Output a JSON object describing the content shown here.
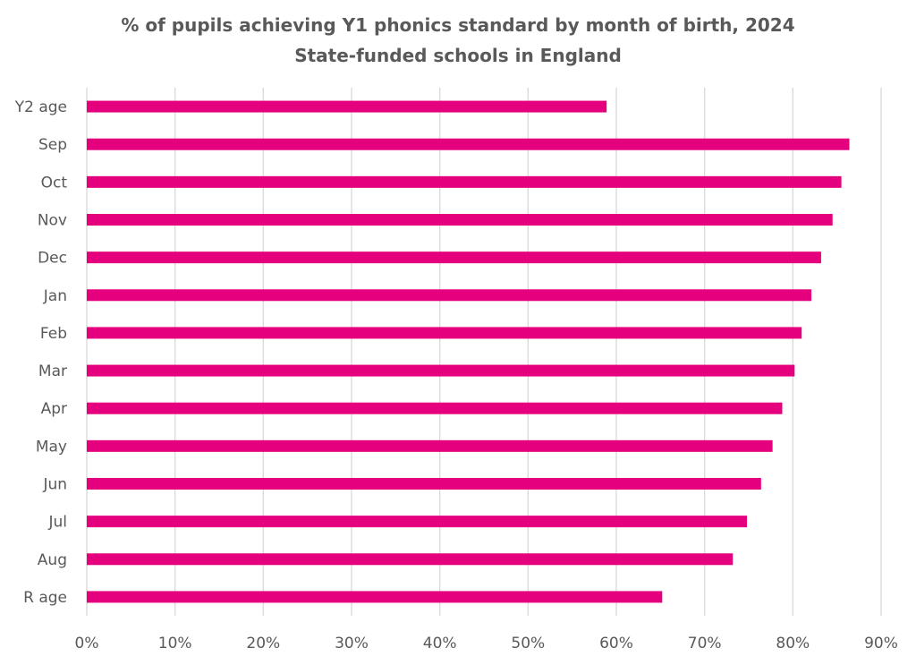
{
  "chart_data": {
    "type": "bar",
    "orientation": "horizontal",
    "title": "% of pupils achieving Y1 phonics standard by month of birth, 2024",
    "subtitle": "State-funded schools in England",
    "categories": [
      "Y2 age",
      "Sep",
      "Oct",
      "Nov",
      "Dec",
      "Jan",
      "Feb",
      "Mar",
      "Apr",
      "May",
      "Jun",
      "Jul",
      "Aug",
      "R age"
    ],
    "values": [
      58.9,
      86.4,
      85.5,
      84.5,
      83.2,
      82.1,
      81.0,
      80.2,
      78.8,
      77.7,
      76.4,
      74.8,
      73.2,
      65.2
    ],
    "xlim": [
      0,
      90
    ],
    "xticks": [
      "0%",
      "10%",
      "20%",
      "30%",
      "40%",
      "50%",
      "60%",
      "70%",
      "80%",
      "90%"
    ],
    "xlabel": "",
    "ylabel": "",
    "grid": "vertical",
    "legend": "none",
    "bar_color": "#E5007E",
    "grid_color": "#D9D9D9",
    "text_color": "#595959"
  }
}
